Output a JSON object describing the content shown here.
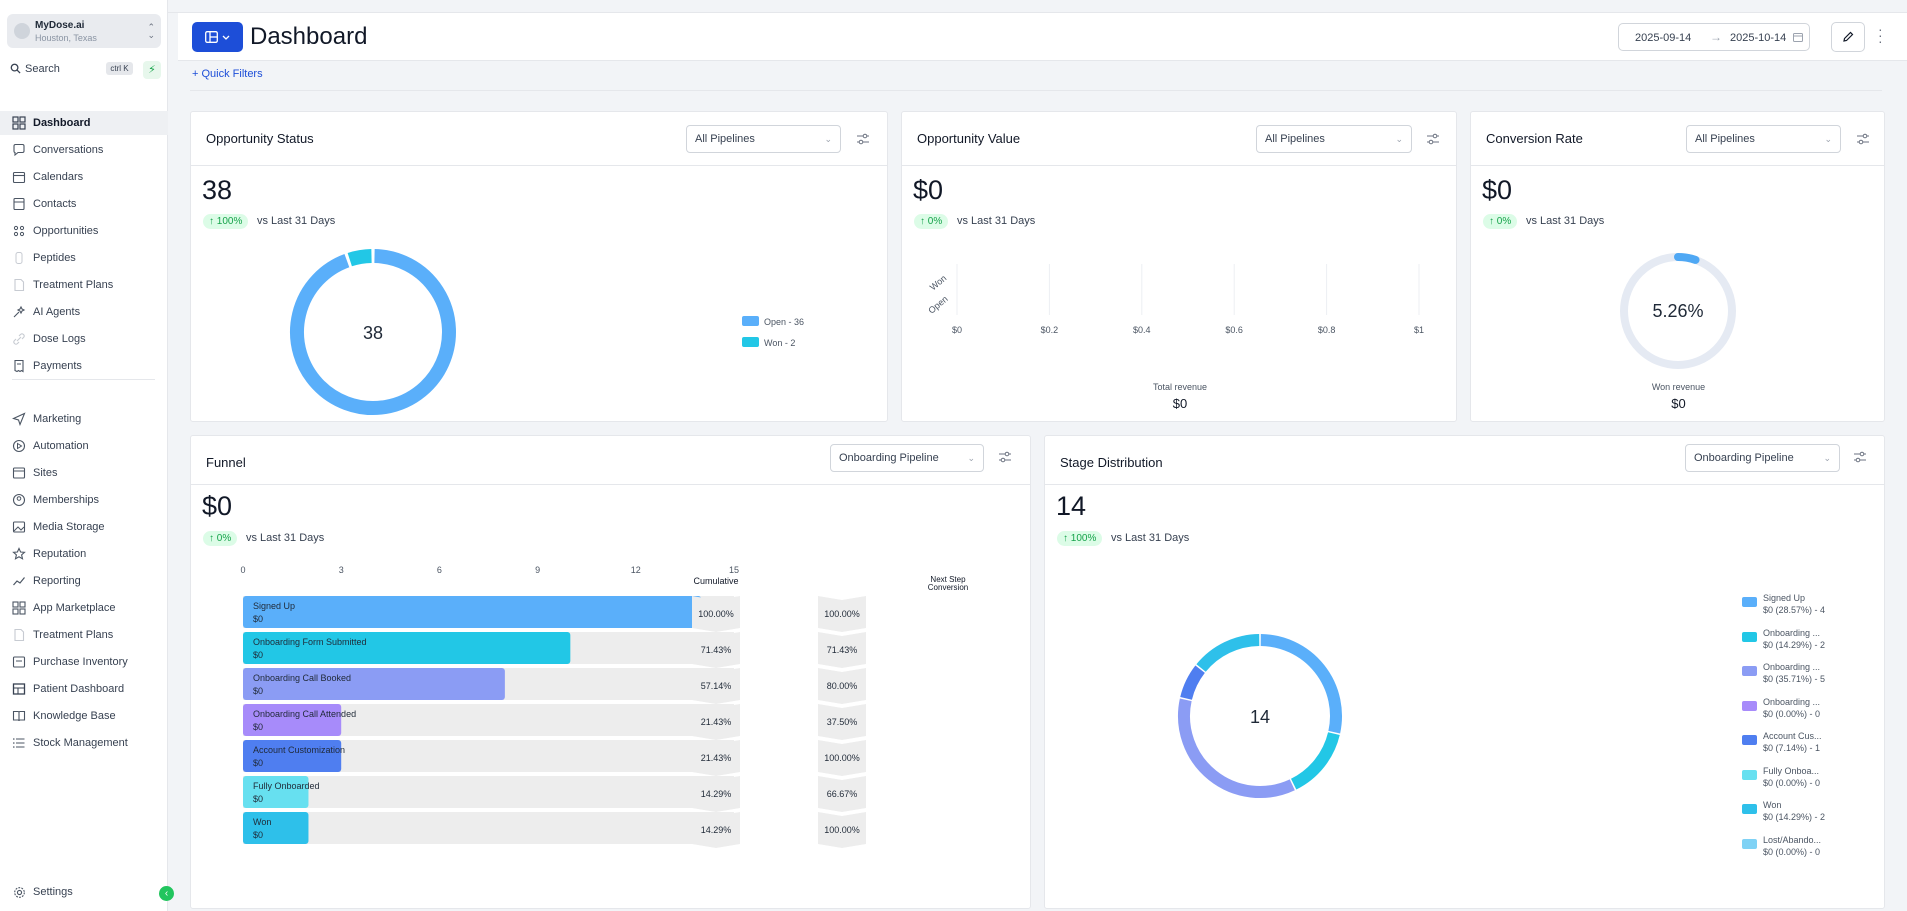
{
  "account": {
    "name": "MyDose.ai",
    "location": "Houston, Texas"
  },
  "search": {
    "label": "Search",
    "shortcut": "ctrl K"
  },
  "nav": [
    {
      "label": "Dashboard",
      "icon": "dashboard-grid-icon",
      "active": true
    },
    {
      "label": "Conversations",
      "icon": "chat-bubble-icon"
    },
    {
      "label": "Calendars",
      "icon": "calendar-icon"
    },
    {
      "label": "Contacts",
      "icon": "contacts-icon"
    },
    {
      "label": "Opportunities",
      "icon": "opportunities-icon"
    },
    {
      "label": "Peptides",
      "icon": "peptides-icon"
    },
    {
      "label": "Treatment Plans",
      "icon": "document-icon"
    },
    {
      "label": "AI Agents",
      "icon": "ai-agents-icon"
    },
    {
      "label": "Dose Logs",
      "icon": "link-icon"
    },
    {
      "label": "Payments",
      "icon": "receipt-icon"
    },
    {
      "label": "Marketing",
      "icon": "send-icon"
    },
    {
      "label": "Automation",
      "icon": "automation-icon"
    },
    {
      "label": "Sites",
      "icon": "sites-icon"
    },
    {
      "label": "Memberships",
      "icon": "memberships-icon"
    },
    {
      "label": "Media Storage",
      "icon": "image-icon"
    },
    {
      "label": "Reputation",
      "icon": "star-icon"
    },
    {
      "label": "Reporting",
      "icon": "trend-icon"
    },
    {
      "label": "App Marketplace",
      "icon": "apps-grid-icon"
    },
    {
      "label": "Treatment Plans",
      "icon": "document-icon"
    },
    {
      "label": "Purchase Inventory",
      "icon": "inventory-icon"
    },
    {
      "label": "Patient Dashboard",
      "icon": "patient-dashboard-icon"
    },
    {
      "label": "Knowledge Base",
      "icon": "book-icon"
    },
    {
      "label": "Stock Management",
      "icon": "list-icon"
    }
  ],
  "settings": {
    "label": "Settings"
  },
  "header": {
    "title": "Dashboard",
    "date_from": "2025-09-14",
    "date_to": "2025-10-14"
  },
  "quick_filters": "+ Quick Filters",
  "colors": {
    "accent": "#1d4ed8",
    "sky": "#5aaffa",
    "cyan": "#22c7e6",
    "indigo": "#8b9cf4",
    "violet": "#a78bfa",
    "blue": "#4f7ef0",
    "aqua": "#67e0f0",
    "teal": "#2ec0ea",
    "lightblue": "#7fd2f5",
    "green": "#16a34a"
  },
  "opportunity_status": {
    "title": "Opportunity Status",
    "filter": "All Pipelines",
    "value": "38",
    "change": "↑ 100%",
    "compare": "vs Last 31 Days",
    "chart_data": {
      "type": "pie",
      "title": "Opportunity Status",
      "center_label": "38",
      "slices": [
        {
          "name": "Open",
          "value": 36
        },
        {
          "name": "Won",
          "value": 2
        }
      ],
      "legend": [
        "Open - 36",
        "Won - 2"
      ]
    }
  },
  "opportunity_value": {
    "title": "Opportunity Value",
    "filter": "All Pipelines",
    "value": "$0",
    "change": "↑ 0%",
    "compare": "vs Last 31 Days",
    "footer_label": "Total revenue",
    "footer_value": "$0",
    "chart_data": {
      "type": "bar",
      "orientation": "horizontal",
      "categories": [
        "Won",
        "Open"
      ],
      "values": [
        0,
        0
      ],
      "x_ticks": [
        "$0",
        "$0.2",
        "$0.4",
        "$0.6",
        "$0.8",
        "$1"
      ],
      "xlim": [
        0,
        1
      ]
    }
  },
  "conversion_rate": {
    "title": "Conversion Rate",
    "filter": "All Pipelines",
    "value": "$0",
    "change": "↑ 0%",
    "compare": "vs Last 31 Days",
    "footer_label": "Won revenue",
    "footer_value": "$0",
    "chart_data": {
      "type": "pie",
      "center_label": "5.26%",
      "value_percent": 5.26
    }
  },
  "funnel": {
    "title": "Funnel",
    "filter": "Onboarding Pipeline",
    "value": "$0",
    "change": "↑ 0%",
    "compare": "vs Last 31 Days",
    "cumulative_header": "Cumulative",
    "next_header": "Next Step Conversion",
    "chart_data": {
      "type": "bar",
      "orientation": "horizontal",
      "xlim": [
        0,
        15
      ],
      "x_ticks": [
        "0",
        "3",
        "6",
        "9",
        "12",
        "15"
      ],
      "categories": [
        "Signed Up",
        "Onboarding Form Submitted",
        "Onboarding Call Booked",
        "Onboarding Call Attended",
        "Account Customization",
        "Fully Onboarded",
        "Won"
      ],
      "values": [
        14,
        10,
        8,
        3,
        3,
        2,
        2
      ],
      "amounts": [
        "$0",
        "$0",
        "$0",
        "$0",
        "$0",
        "$0",
        "$0"
      ],
      "cumulative": [
        "100.00%",
        "71.43%",
        "57.14%",
        "21.43%",
        "21.43%",
        "14.29%",
        "14.29%"
      ],
      "next_step": [
        "100.00%",
        "71.43%",
        "80.00%",
        "37.50%",
        "100.00%",
        "66.67%",
        "100.00%"
      ]
    }
  },
  "stage_distribution": {
    "title": "Stage Distribution",
    "filter": "Onboarding Pipeline",
    "value": "14",
    "change": "↑ 100%",
    "compare": "vs Last 31 Days",
    "chart_data": {
      "type": "pie",
      "center_label": "14",
      "slices": [
        {
          "name": "Signed Up",
          "value": 4
        },
        {
          "name": "Onboarding Form Submitted",
          "value": 2
        },
        {
          "name": "Onboarding Call Booked",
          "value": 5
        },
        {
          "name": "Onboarding Call Attended",
          "value": 0
        },
        {
          "name": "Account Customization",
          "value": 1
        },
        {
          "name": "Fully Onboarded",
          "value": 0
        },
        {
          "name": "Won",
          "value": 2
        },
        {
          "name": "Lost/Abandoned",
          "value": 0
        }
      ],
      "legend": [
        {
          "name": "Signed Up",
          "detail": "$0 (28.57%) - 4"
        },
        {
          "name": "Onboarding ...",
          "detail": "$0 (14.29%) - 2"
        },
        {
          "name": "Onboarding ...",
          "detail": "$0 (35.71%) - 5"
        },
        {
          "name": "Onboarding ...",
          "detail": "$0 (0.00%) - 0"
        },
        {
          "name": "Account Cus...",
          "detail": "$0 (7.14%) - 1"
        },
        {
          "name": "Fully Onboa...",
          "detail": "$0 (0.00%) - 0"
        },
        {
          "name": "Won",
          "detail": "$0 (14.29%) - 2"
        },
        {
          "name": "Lost/Abando...",
          "detail": "$0 (0.00%) - 0"
        }
      ]
    }
  }
}
